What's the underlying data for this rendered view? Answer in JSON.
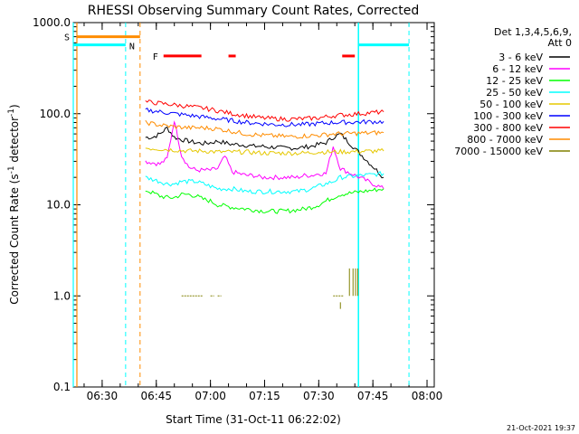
{
  "chart_data": {
    "type": "line",
    "title": "RHESSI Observing Summary Count Rates, Corrected",
    "xlabel": "Start Time (31-Oct-11 06:22:02)",
    "ylabel_main": "Corrected Count Rate (s",
    "ylabel_sup1": "-1",
    "ylabel_mid": " detector",
    "ylabel_sup2": "-1",
    "ylabel_end": ")",
    "yscale": "log",
    "ylim": [
      0.1,
      1000
    ],
    "xlim_minutes": [
      0,
      100
    ],
    "x_ticks": [
      "06:30",
      "06:45",
      "07:00",
      "07:15",
      "07:30",
      "07:45",
      "08:00"
    ],
    "y_ticks": [
      "0.1",
      "1.0",
      "10.0",
      "100.0",
      "1000.0"
    ],
    "grid": false,
    "legend_header_1": "Det 1,3,4,5,6,9,",
    "legend_header_2": "Att 0",
    "legend_position": "right",
    "series": [
      {
        "name": "3 - 6 keV",
        "color": "#000000",
        "x": [
          20,
          22,
          24,
          26,
          28,
          30,
          32,
          34,
          36,
          38,
          40,
          42,
          44,
          46,
          48,
          50,
          52,
          54,
          56,
          58,
          60,
          62,
          64,
          66,
          68,
          70,
          72,
          74,
          86
        ],
        "y": [
          55,
          55,
          60,
          70,
          55,
          52,
          50,
          48,
          47,
          48,
          50,
          48,
          46,
          46,
          45,
          44,
          44,
          43,
          43,
          42,
          42,
          42,
          43,
          44,
          46,
          48,
          55,
          60,
          20
        ]
      },
      {
        "name": "6 - 12 keV",
        "color": "#ff00ff",
        "x": [
          20,
          22,
          24,
          26,
          28,
          30,
          32,
          34,
          36,
          38,
          40,
          42,
          44,
          46,
          48,
          50,
          52,
          54,
          56,
          58,
          60,
          62,
          64,
          66,
          68,
          70,
          72,
          74,
          86
        ],
        "y": [
          30,
          29,
          28,
          32,
          85,
          35,
          26,
          24,
          24,
          24,
          25,
          34,
          23,
          22,
          21,
          21,
          20,
          20,
          20,
          20,
          20,
          20,
          21,
          21,
          22,
          22,
          44,
          25,
          15
        ]
      },
      {
        "name": "12 - 25 keV",
        "color": "#00ff00",
        "x": [
          20,
          22,
          24,
          26,
          28,
          30,
          32,
          34,
          36,
          38,
          40,
          42,
          44,
          46,
          48,
          50,
          52,
          54,
          56,
          58,
          60,
          62,
          64,
          66,
          68,
          70,
          72,
          74,
          86
        ],
        "y": [
          14.5,
          13.5,
          12.5,
          12,
          12,
          13,
          13,
          12.5,
          11.5,
          11,
          10,
          9.7,
          9.4,
          9.2,
          9,
          8.8,
          8.6,
          8.5,
          8.5,
          8.5,
          8.6,
          8.8,
          9,
          9.4,
          10,
          11,
          12,
          13,
          15
        ]
      },
      {
        "name": "25 - 50 keV",
        "color": "#00ffff",
        "x": [
          20,
          22,
          24,
          26,
          28,
          30,
          32,
          34,
          36,
          38,
          40,
          42,
          44,
          46,
          48,
          50,
          52,
          54,
          56,
          58,
          60,
          62,
          64,
          66,
          68,
          70,
          72,
          74,
          86
        ],
        "y": [
          20,
          19,
          18,
          17,
          17,
          18,
          18,
          18,
          17,
          16,
          15,
          15,
          15,
          14.5,
          14,
          14,
          14,
          14,
          14,
          14,
          14,
          14,
          14.5,
          15,
          16,
          17,
          18,
          20,
          22
        ]
      },
      {
        "name": "50 - 100 keV",
        "color": "#e5c800",
        "x": [
          20,
          24,
          28,
          32,
          36,
          40,
          44,
          48,
          52,
          56,
          60,
          64,
          68,
          72,
          86
        ],
        "y": [
          42,
          41,
          40,
          39,
          39,
          38,
          38,
          38,
          37,
          37,
          37,
          37,
          38,
          38,
          39
        ]
      },
      {
        "name": "100 - 300 keV",
        "color": "#0000ff",
        "x": [
          20,
          24,
          28,
          32,
          36,
          40,
          44,
          48,
          52,
          56,
          60,
          64,
          68,
          72,
          86
        ],
        "y": [
          110,
          105,
          100,
          96,
          92,
          88,
          84,
          80,
          78,
          76,
          76,
          76,
          78,
          80,
          82
        ]
      },
      {
        "name": "300 - 800 keV",
        "color": "#ff0000",
        "x": [
          20,
          24,
          28,
          32,
          36,
          40,
          44,
          48,
          52,
          56,
          60,
          64,
          68,
          72,
          86
        ],
        "y": [
          135,
          130,
          125,
          120,
          115,
          108,
          100,
          95,
          90,
          88,
          87,
          88,
          90,
          95,
          105
        ]
      },
      {
        "name": "800 - 7000 keV",
        "color": "#ff8c00",
        "x": [
          20,
          24,
          28,
          32,
          36,
          40,
          44,
          48,
          52,
          56,
          60,
          64,
          68,
          72,
          86
        ],
        "y": [
          80,
          75,
          72,
          70,
          70,
          68,
          64,
          60,
          58,
          57,
          56,
          57,
          58,
          60,
          62
        ]
      },
      {
        "name": "7000 - 15000 keV",
        "color": "#808000",
        "x": [
          30,
          40,
          42,
          46,
          72,
          76,
          78,
          86
        ],
        "y": [
          1.0,
          1.0,
          1.0,
          1.0,
          1.0,
          1.0,
          1.0,
          1.0
        ]
      }
    ],
    "flag_markers": [
      {
        "label": "S",
        "color": "#ff8c00"
      },
      {
        "label": "N",
        "color": "#00ffff"
      },
      {
        "label": "F",
        "color": "#ff0000"
      }
    ],
    "saa_level": 700,
    "night_level": 570
  },
  "footer": {
    "timestamp": "21-Oct-2021 19:37"
  }
}
